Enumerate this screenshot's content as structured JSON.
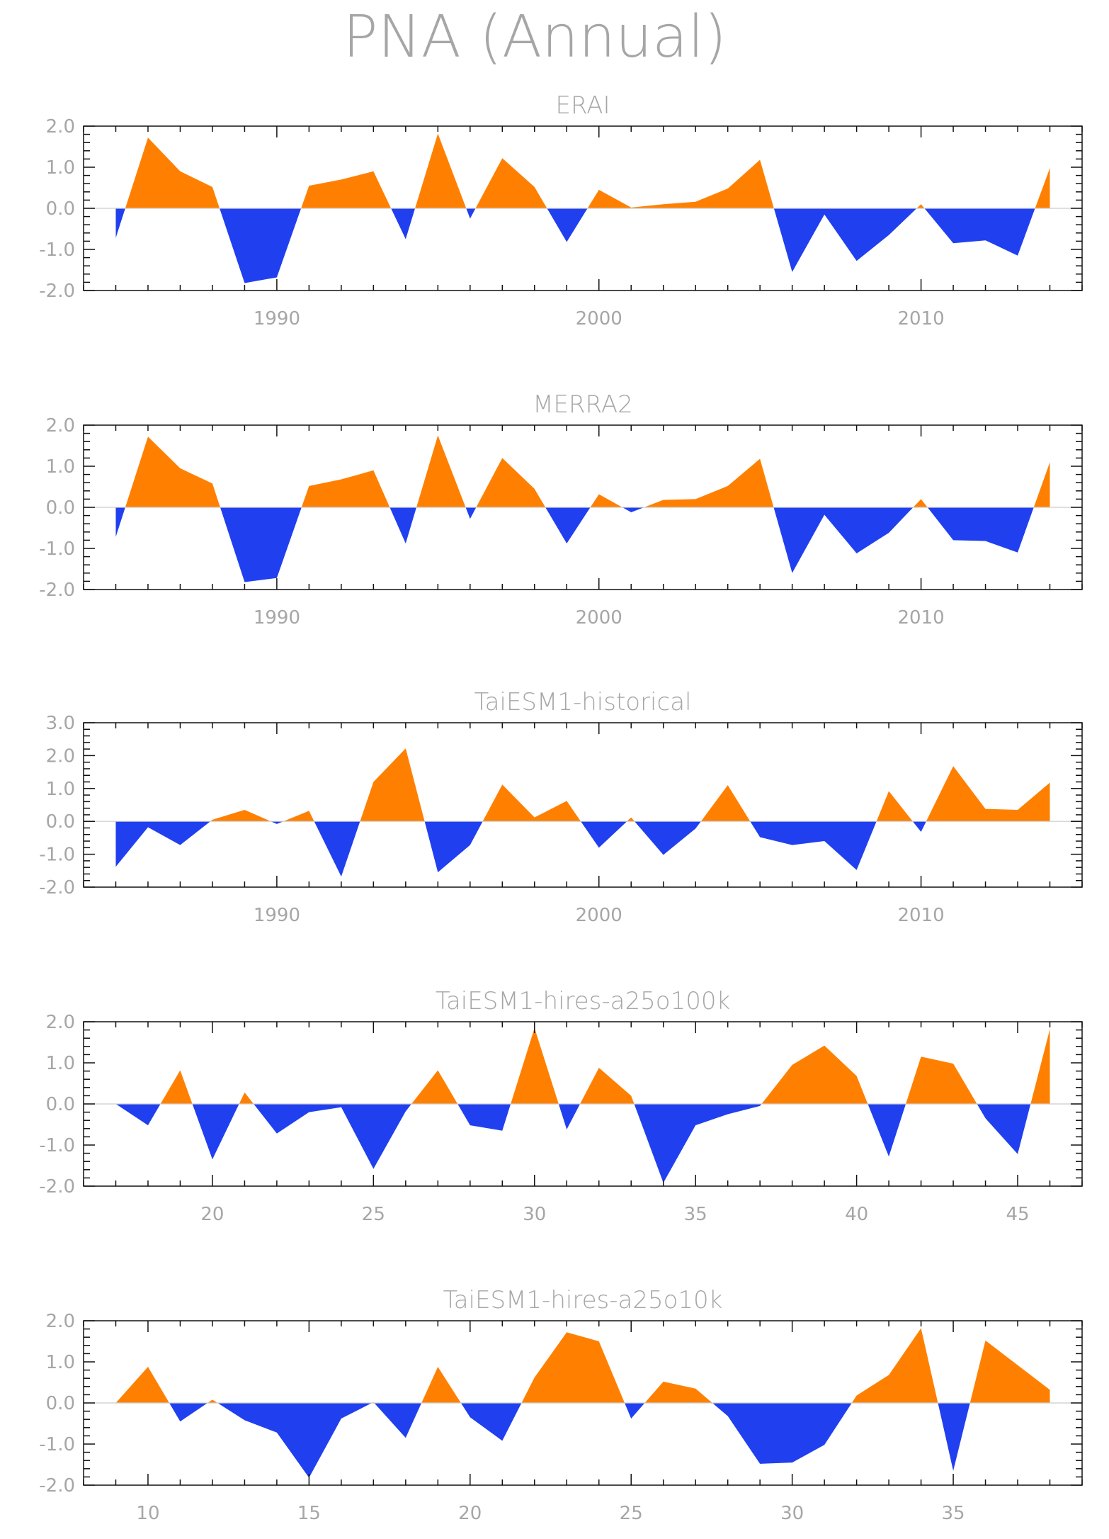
{
  "title": "PNA (Annual)",
  "colors": {
    "positive": "#ff8000",
    "negative": "#2040f0",
    "text": "#a6a6a6",
    "frame": "#111111"
  },
  "chart_data": [
    {
      "type": "area",
      "title": "ERAI",
      "xlim": [
        1984,
        2015
      ],
      "ylim": [
        -2.0,
        2.0
      ],
      "yticks": [
        -2.0,
        -1.0,
        0.0,
        1.0,
        2.0
      ],
      "ytick_labels": [
        "-2.0",
        "-1.0",
        "0.0",
        "1.0",
        "2.0"
      ],
      "xticks": [
        1990,
        2000,
        2010
      ],
      "xtick_labels": [
        "1990",
        "2000",
        "2010"
      ],
      "x": [
        1985,
        1986,
        1987,
        1988,
        1989,
        1990,
        1991,
        1992,
        1993,
        1994,
        1995,
        1996,
        1997,
        1998,
        1999,
        2000,
        2001,
        2002,
        2003,
        2004,
        2005,
        2006,
        2007,
        2008,
        2009,
        2010,
        2011,
        2012,
        2013,
        2014
      ],
      "y": [
        -0.72,
        1.72,
        0.9,
        0.52,
        -1.82,
        -1.68,
        0.55,
        0.7,
        0.9,
        -0.75,
        1.82,
        -0.25,
        1.22,
        0.52,
        -0.82,
        0.45,
        0.02,
        0.1,
        0.16,
        0.48,
        1.18,
        -1.55,
        -0.15,
        -1.28,
        -0.65,
        0.1,
        -0.85,
        -0.78,
        -1.15,
        0.98
      ]
    },
    {
      "type": "area",
      "title": "MERRA2",
      "xlim": [
        1984,
        2015
      ],
      "ylim": [
        -2.0,
        2.0
      ],
      "yticks": [
        -2.0,
        -1.0,
        0.0,
        1.0,
        2.0
      ],
      "ytick_labels": [
        "-2.0",
        "-1.0",
        "0.0",
        "1.0",
        "2.0"
      ],
      "xticks": [
        1990,
        2000,
        2010
      ],
      "xtick_labels": [
        "1990",
        "2000",
        "2010"
      ],
      "x": [
        1985,
        1986,
        1987,
        1988,
        1989,
        1990,
        1991,
        1992,
        1993,
        1994,
        1995,
        1996,
        1997,
        1998,
        1999,
        2000,
        2001,
        2002,
        2003,
        2004,
        2005,
        2006,
        2007,
        2008,
        2009,
        2010,
        2011,
        2012,
        2013,
        2014
      ],
      "y": [
        -0.72,
        1.72,
        0.95,
        0.58,
        -1.82,
        -1.72,
        0.52,
        0.68,
        0.9,
        -0.88,
        1.75,
        -0.28,
        1.2,
        0.45,
        -0.88,
        0.32,
        -0.12,
        0.18,
        0.2,
        0.52,
        1.18,
        -1.6,
        -0.18,
        -1.12,
        -0.62,
        0.2,
        -0.8,
        -0.82,
        -1.1,
        1.1
      ]
    },
    {
      "type": "area",
      "title": "TaiESM1-historical",
      "xlim": [
        1984,
        2015
      ],
      "ylim": [
        -2.0,
        3.0
      ],
      "yticks": [
        -2.0,
        -1.0,
        0.0,
        1.0,
        2.0,
        3.0
      ],
      "ytick_labels": [
        "-2.0",
        "-1.0",
        "0.0",
        "1.0",
        "2.0",
        "3.0"
      ],
      "xticks": [
        1990,
        2000,
        2010
      ],
      "xtick_labels": [
        "1990",
        "2000",
        "2010"
      ],
      "x": [
        1985,
        1986,
        1987,
        1988,
        1989,
        1990,
        1991,
        1992,
        1993,
        1994,
        1995,
        1996,
        1997,
        1998,
        1999,
        2000,
        2001,
        2002,
        2003,
        2004,
        2005,
        2006,
        2007,
        2008,
        2009,
        2010,
        2011,
        2012,
        2013,
        2014
      ],
      "y": [
        -1.38,
        -0.18,
        -0.72,
        0.05,
        0.35,
        -0.08,
        0.32,
        -1.68,
        1.2,
        2.22,
        -1.55,
        -0.72,
        1.12,
        0.12,
        0.62,
        -0.8,
        0.12,
        -1.02,
        -0.22,
        1.1,
        -0.48,
        -0.72,
        -0.6,
        -1.48,
        0.92,
        -0.32,
        1.68,
        0.38,
        0.35,
        1.18
      ]
    },
    {
      "type": "area",
      "title": "TaiESM1-hires-a25o100k",
      "xlim": [
        16,
        47
      ],
      "ylim": [
        -2.0,
        2.0
      ],
      "yticks": [
        -2.0,
        -1.0,
        0.0,
        1.0,
        2.0
      ],
      "ytick_labels": [
        "-2.0",
        "-1.0",
        "0.0",
        "1.0",
        "2.0"
      ],
      "xticks": [
        20,
        25,
        30,
        35,
        40,
        45
      ],
      "xtick_labels": [
        "20",
        "25",
        "30",
        "35",
        "40",
        "45"
      ],
      "x": [
        17,
        18,
        19,
        20,
        21,
        22,
        23,
        24,
        25,
        26,
        27,
        28,
        29,
        30,
        31,
        32,
        33,
        34,
        35,
        36,
        37,
        38,
        39,
        40,
        41,
        42,
        43,
        44,
        45,
        46
      ],
      "y": [
        0.0,
        -0.52,
        0.82,
        -1.35,
        0.28,
        -0.72,
        -0.2,
        -0.08,
        -1.58,
        -0.18,
        0.82,
        -0.52,
        -0.65,
        1.85,
        -0.62,
        0.88,
        0.2,
        -1.92,
        -0.52,
        -0.25,
        -0.05,
        0.95,
        1.42,
        0.68,
        -1.28,
        1.15,
        0.98,
        -0.35,
        -1.22,
        1.82
      ]
    },
    {
      "type": "area",
      "title": "TaiESM1-hires-a25o10k",
      "xlim": [
        8,
        39
      ],
      "ylim": [
        -2.0,
        2.0
      ],
      "yticks": [
        -2.0,
        -1.0,
        0.0,
        1.0,
        2.0
      ],
      "ytick_labels": [
        "-2.0",
        "-1.0",
        "0.0",
        "1.0",
        "2.0"
      ],
      "xticks": [
        10,
        15,
        20,
        25,
        30,
        35
      ],
      "xtick_labels": [
        "10",
        "15",
        "20",
        "25",
        "30",
        "35"
      ],
      "x": [
        9,
        10,
        11,
        12,
        13,
        14,
        15,
        16,
        17,
        18,
        19,
        20,
        21,
        22,
        23,
        24,
        25,
        26,
        27,
        28,
        29,
        30,
        31,
        32,
        33,
        34,
        35,
        36,
        37,
        38
      ],
      "y": [
        0.0,
        0.88,
        -0.45,
        0.08,
        -0.42,
        -0.72,
        -1.82,
        -0.38,
        0.02,
        -0.85,
        0.88,
        -0.35,
        -0.92,
        0.62,
        1.72,
        1.5,
        -0.38,
        0.52,
        0.35,
        -0.32,
        -1.48,
        -1.45,
        -1.02,
        0.18,
        0.68,
        1.82,
        -1.65,
        1.52,
        0.92,
        0.32
      ]
    }
  ]
}
